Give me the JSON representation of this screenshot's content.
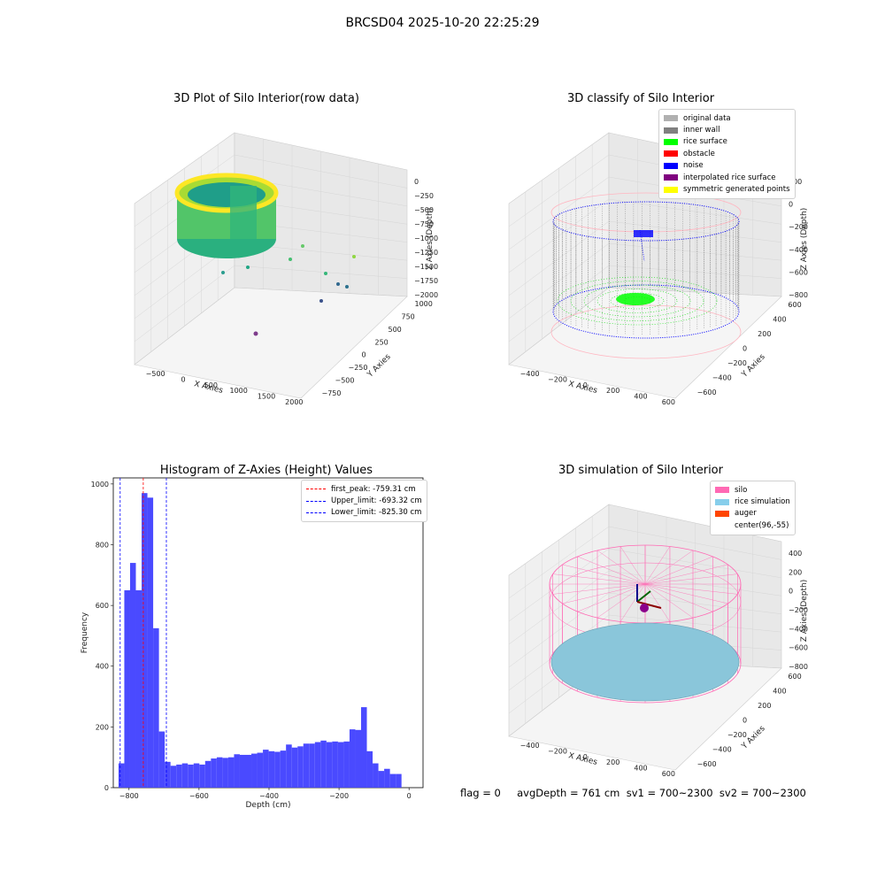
{
  "suptitle": "BRCSD04 2025-10-20 22:25:29",
  "panels": {
    "raw": {
      "title": "3D Plot of Silo Interior(row data)",
      "xlabel": "X Axies",
      "ylabel": "Y Axies",
      "zlabel": "Z Axies (Depth)",
      "xticks": [
        "-500",
        "0",
        "500",
        "1000",
        "1500",
        "2000"
      ],
      "yticks": [
        "1000",
        "750",
        "500",
        "250",
        "0",
        "-250",
        "-500",
        "-750"
      ],
      "zticks": [
        "0",
        "-250",
        "-500",
        "-750",
        "-1000",
        "-1250",
        "-1500",
        "-1750",
        "-2000"
      ]
    },
    "classify": {
      "title": "3D classify of Silo Interior",
      "xlabel": "X Axies",
      "ylabel": "Y Axies",
      "zlabel": "Z Axies (Depth)",
      "xticks": [
        "-400",
        "-200",
        "0",
        "200",
        "400",
        "600"
      ],
      "yticks": [
        "600",
        "400",
        "200",
        "0",
        "-200",
        "-400",
        "-600"
      ],
      "zticks": [
        "200",
        "0",
        "-200",
        "-400",
        "-600",
        "-800"
      ],
      "legend": [
        {
          "label": "original data",
          "color": "#b0b0b0"
        },
        {
          "label": "inner wall",
          "color": "#808080"
        },
        {
          "label": "rice surface",
          "color": "#00ff00"
        },
        {
          "label": "obstacle",
          "color": "#ff0000"
        },
        {
          "label": "noise",
          "color": "#0000ff"
        },
        {
          "label": "interpolated rice surface",
          "color": "#800080"
        },
        {
          "label": "symmetric generated points",
          "color": "#ffff00"
        }
      ]
    },
    "histogram": {
      "title": "Histogram of Z-Axies (Height) Values",
      "legend": [
        {
          "label": "first_peak: -759.31 cm",
          "color": "#ff0000"
        },
        {
          "label": "Upper_limit: -693.32 cm",
          "color": "#0000ff"
        },
        {
          "label": "Lower_limit: -825.30 cm",
          "color": "#0000ff"
        }
      ]
    },
    "simulation": {
      "title": "3D simulation of Silo Interior",
      "xlabel": "X Axies",
      "ylabel": "Y Axies",
      "zlabel": "Z Axies (Depth)",
      "xticks": [
        "-400",
        "-200",
        "0",
        "200",
        "400",
        "600"
      ],
      "yticks": [
        "600",
        "400",
        "200",
        "0",
        "-200",
        "-400",
        "-600"
      ],
      "zticks": [
        "400",
        "200",
        "0",
        "-200",
        "-400",
        "-600",
        "-800"
      ],
      "legend": [
        {
          "label": "silo",
          "color": "#ff69b4"
        },
        {
          "label": "rice simulation",
          "color": "#87ceeb"
        },
        {
          "label": "auger",
          "color": "#ff4500"
        },
        {
          "label": "center(96,-55)",
          "color": ""
        }
      ]
    }
  },
  "footer": "flag = 0     avgDepth = 761 cm  sv1 = 700~2300  sv2 = 700~2300",
  "chart_data": {
    "type": "bar",
    "title": "Histogram of Z-Axies (Height) Values",
    "xlabel": "Depth (cm)",
    "ylabel": "Frequency",
    "xlim": [
      -845,
      40
    ],
    "ylim": [
      0,
      1020
    ],
    "xticks": [
      -800,
      -600,
      -400,
      -200,
      0
    ],
    "yticks": [
      0,
      200,
      400,
      600,
      800,
      1000
    ],
    "bin_edges_start": -830,
    "bin_width": 16.5,
    "values": [
      80,
      650,
      740,
      650,
      970,
      955,
      525,
      185,
      85,
      72,
      76,
      80,
      76,
      80,
      76,
      88,
      96,
      100,
      98,
      100,
      110,
      108,
      108,
      112,
      115,
      125,
      120,
      118,
      122,
      142,
      132,
      136,
      145,
      145,
      150,
      155,
      150,
      152,
      150,
      152,
      192,
      190,
      265,
      120,
      80,
      55,
      62,
      45,
      45
    ],
    "series_color": "#4a4aff",
    "vlines": [
      {
        "x": -759.31,
        "color": "#ff0000"
      },
      {
        "x": -693.32,
        "color": "#0000ff"
      },
      {
        "x": -825.3,
        "color": "#0000ff"
      }
    ]
  }
}
